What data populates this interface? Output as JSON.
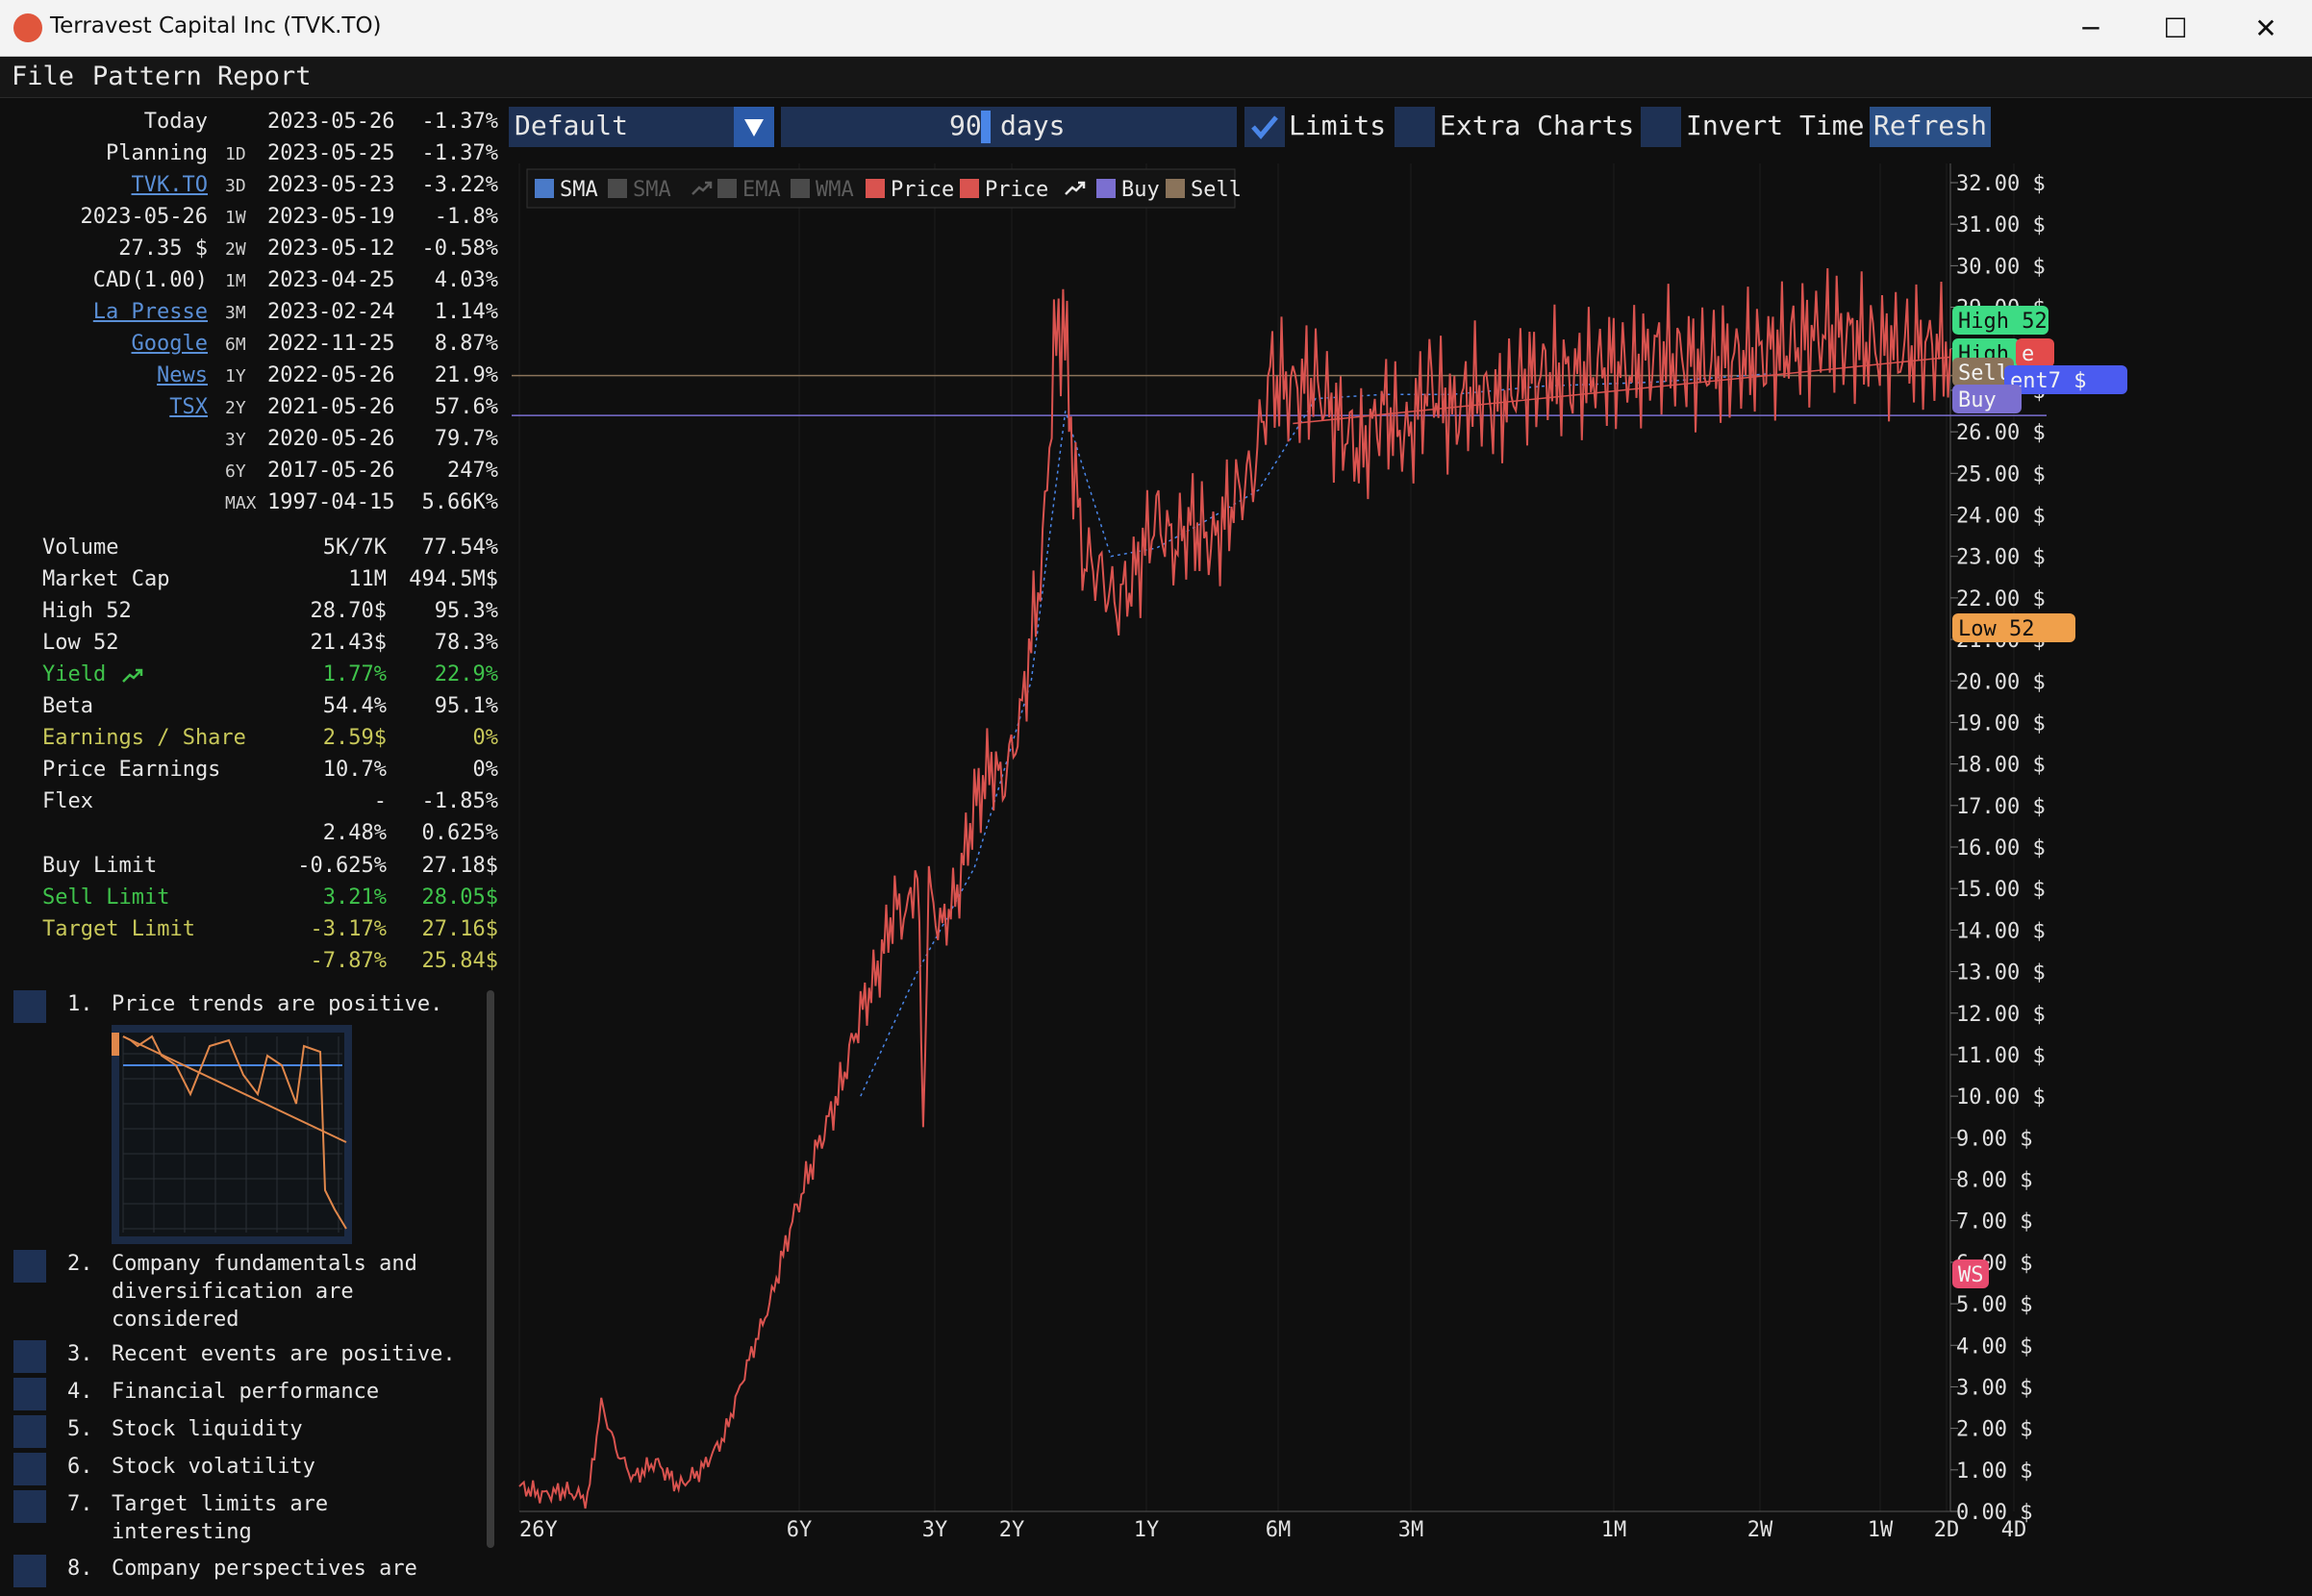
{
  "window": {
    "title": "Terravest Capital Inc (TVK.TO)",
    "minimize": "─",
    "maximize": "☐",
    "close": "✕"
  },
  "menu": [
    "File",
    "Pattern",
    "Report"
  ],
  "toolbar": {
    "preset": "Default",
    "days_value": "90",
    "days_unit": "days",
    "limits_label": "Limits",
    "limits_checked": true,
    "extra_charts_label": "Extra Charts",
    "invert_time_label": "Invert Time",
    "refresh_label": "Refresh"
  },
  "summary": {
    "left": [
      "Today",
      "Planning",
      "TVK.TO",
      "2023-05-26",
      "27.35 $",
      "CAD(1.00)",
      "La Presse",
      "Google",
      "News",
      "TSX"
    ],
    "periods": [
      {
        "code": "",
        "date": "2023-05-26",
        "change": "-1.37%"
      },
      {
        "code": "1D",
        "date": "2023-05-25",
        "change": "-1.37%"
      },
      {
        "code": "3D",
        "date": "2023-05-23",
        "change": "-3.22%"
      },
      {
        "code": "1W",
        "date": "2023-05-19",
        "change": "-1.8%"
      },
      {
        "code": "2W",
        "date": "2023-05-12",
        "change": "-0.58%"
      },
      {
        "code": "1M",
        "date": "2023-04-25",
        "change": "4.03%"
      },
      {
        "code": "3M",
        "date": "2023-02-24",
        "change": "1.14%"
      },
      {
        "code": "6M",
        "date": "2022-11-25",
        "change": "8.87%"
      },
      {
        "code": "1Y",
        "date": "2022-05-26",
        "change": "21.9%"
      },
      {
        "code": "2Y",
        "date": "2021-05-26",
        "change": "57.6%"
      },
      {
        "code": "3Y",
        "date": "2020-05-26",
        "change": "79.7%"
      },
      {
        "code": "6Y",
        "date": "2017-05-26",
        "change": "247%"
      },
      {
        "code": "MAX",
        "date": "1997-04-15",
        "change": "5.66K%"
      }
    ]
  },
  "stats": [
    {
      "label": "Volume",
      "v1": "5K/7K",
      "v2": "77.54%",
      "color": "white"
    },
    {
      "label": "Market Cap",
      "v1": "11M",
      "v2": "494.5M$",
      "color": "white"
    },
    {
      "label": "High 52",
      "v1": "28.70$",
      "v2": "95.3%",
      "color": "white"
    },
    {
      "label": "Low 52",
      "v1": "21.43$",
      "v2": "78.3%",
      "color": "white"
    },
    {
      "label": "Yield",
      "v1": "1.77%",
      "v2": "22.9%",
      "color": "green"
    },
    {
      "label": "Beta",
      "v1": "54.4%",
      "v2": "95.1%",
      "color": "white"
    },
    {
      "label": "Earnings / Share",
      "v1": "2.59$",
      "v2": "0%",
      "color": "yellow"
    },
    {
      "label": "Price Earnings",
      "v1": "10.7%",
      "v2": "0%",
      "color": "white"
    },
    {
      "label": "Flex",
      "v1": "-",
      "v2": "-1.85%",
      "color": "white"
    },
    {
      "label": "",
      "v1": "2.48%",
      "v2": "0.625%",
      "color": "white"
    }
  ],
  "limits": [
    {
      "label": "Buy Limit",
      "v1": "-0.625%",
      "v2": "27.18$",
      "color": "white"
    },
    {
      "label": "Sell Limit",
      "v1": "3.21%",
      "v2": "28.05$",
      "color": "green"
    },
    {
      "label": "Target Limit",
      "v1": "-3.17%",
      "v2": "27.16$",
      "color": "yellow"
    },
    {
      "label": "",
      "v1": "-7.87%",
      "v2": "25.84$",
      "color": "yellow"
    }
  ],
  "checklist": [
    {
      "num": "1.",
      "lines": [
        "Price trends are positive."
      ]
    },
    {
      "num": "2.",
      "lines": [
        "Company fundamentals and",
        "diversification are",
        "considered"
      ]
    },
    {
      "num": "3.",
      "lines": [
        "Recent events are positive."
      ]
    },
    {
      "num": "4.",
      "lines": [
        "Financial performance"
      ]
    },
    {
      "num": "5.",
      "lines": [
        "Stock liquidity"
      ]
    },
    {
      "num": "6.",
      "lines": [
        "Stock volatility"
      ]
    },
    {
      "num": "7.",
      "lines": [
        "Target limits are",
        "interesting"
      ]
    },
    {
      "num": "8.",
      "lines": [
        "Company perspectives are"
      ]
    }
  ],
  "chart_data": {
    "type": "line",
    "legend": [
      "SMA",
      "SMA",
      "EMA",
      "WMA",
      "Price",
      "Price",
      "Buy",
      "Sell"
    ],
    "y_ticks": [
      "32.00 $",
      "31.00 $",
      "30.00 $",
      "29.00 $",
      "28.00 $",
      "27.00 $",
      "26.00 $",
      "25.00 $",
      "24.00 $",
      "23.00 $",
      "22.00 $",
      "21.00 $",
      "20.00 $",
      "19.00 $",
      "18.00 $",
      "17.00 $",
      "16.00 $",
      "15.00 $",
      "14.00 $",
      "13.00 $",
      "12.00 $",
      "11.00 $",
      "10.00 $",
      "9.00 $",
      "8.00 $",
      "7.00 $",
      "6.00 $",
      "5.00 $",
      "4.00 $",
      "3.00 $",
      "2.00 $",
      "1.00 $",
      "0.00 $"
    ],
    "ylim": [
      0,
      32
    ],
    "x_ticks": [
      "26Y",
      "6Y",
      "3Y",
      "2Y",
      "1Y",
      "6M",
      "3M",
      "1M",
      "2W",
      "1W",
      "4D",
      "2D"
    ],
    "tags": [
      {
        "label": "High 52",
        "color": "#3ddc84"
      },
      {
        "label": "High",
        "color": "#3ddc84"
      },
      {
        "label": "e",
        "color": "#e34b4b"
      },
      {
        "label": "Sell",
        "color": "#8a735a"
      },
      {
        "label": "ent7 $",
        "color": "#4b5bf0"
      },
      {
        "label": "Buy",
        "color": "#7b6fd0"
      },
      {
        "label": "Low 52",
        "color": "#f0a04b"
      },
      {
        "label": "WS",
        "color": "#e84b6f"
      }
    ],
    "price_points": [
      [
        0,
        0.6
      ],
      [
        20,
        0.4
      ],
      [
        40,
        0.5
      ],
      [
        60,
        0.3
      ],
      [
        72,
        2.6
      ],
      [
        85,
        1.5
      ],
      [
        100,
        0.8
      ],
      [
        120,
        1.2
      ],
      [
        140,
        0.6
      ],
      [
        160,
        1.0
      ],
      [
        180,
        1.8
      ],
      [
        200,
        3.5
      ],
      [
        220,
        5.0
      ],
      [
        240,
        7.0
      ],
      [
        260,
        8.6
      ],
      [
        280,
        10.0
      ],
      [
        300,
        12.0
      ],
      [
        315,
        13.0
      ],
      [
        330,
        14.6
      ],
      [
        340,
        14.3
      ],
      [
        350,
        15.5
      ],
      [
        355,
        9.3
      ],
      [
        360,
        15.0
      ],
      [
        370,
        14.0
      ],
      [
        385,
        14.9
      ],
      [
        400,
        17.0
      ],
      [
        415,
        18.0
      ],
      [
        425,
        17.5
      ],
      [
        440,
        19.0
      ],
      [
        450,
        21.0
      ],
      [
        460,
        23.0
      ],
      [
        470,
        27.8
      ],
      [
        478,
        28.9
      ],
      [
        485,
        26.0
      ],
      [
        495,
        23.0
      ],
      [
        510,
        22.6
      ],
      [
        525,
        21.8
      ],
      [
        540,
        22.5
      ],
      [
        560,
        24.0
      ],
      [
        575,
        23.2
      ],
      [
        590,
        23.8
      ],
      [
        610,
        23.3
      ],
      [
        630,
        24.5
      ],
      [
        645,
        25.0
      ],
      [
        660,
        27.3
      ],
      [
        680,
        27.0
      ],
      [
        700,
        27.2
      ],
      [
        720,
        26.2
      ],
      [
        740,
        25.5
      ],
      [
        760,
        26.6
      ],
      [
        780,
        25.8
      ],
      [
        800,
        27.2
      ],
      [
        820,
        26.4
      ],
      [
        840,
        27.0
      ],
      [
        860,
        26.6
      ],
      [
        880,
        27.2
      ],
      [
        900,
        27.4
      ],
      [
        930,
        27.3
      ],
      [
        960,
        27.6
      ],
      [
        980,
        27.5
      ],
      [
        1000,
        27.9
      ],
      [
        1040,
        27.6
      ],
      [
        1100,
        27.9
      ],
      [
        1150,
        28.4
      ],
      [
        1200,
        28.0
      ],
      [
        1258,
        28.0
      ]
    ],
    "sma_points": [
      [
        300,
        10.0
      ],
      [
        350,
        13.0
      ],
      [
        400,
        15.5
      ],
      [
        450,
        20.0
      ],
      [
        480,
        26.5
      ],
      [
        520,
        23.0
      ],
      [
        560,
        23.2
      ],
      [
        600,
        23.8
      ],
      [
        650,
        24.6
      ],
      [
        700,
        26.8
      ],
      [
        760,
        26.9
      ],
      [
        820,
        26.9
      ],
      [
        900,
        27.1
      ],
      [
        1000,
        27.2
      ],
      [
        1100,
        27.4
      ]
    ],
    "trend_line": [
      [
        680,
        26.2
      ],
      [
        1258,
        27.8
      ]
    ],
    "sell_limit": 28.05,
    "buy_limit": 27.18
  },
  "mini_chart": {
    "price_points": [
      [
        0,
        0.0
      ],
      [
        8,
        0.02
      ],
      [
        15,
        0.05
      ],
      [
        30,
        0.0
      ],
      [
        40,
        0.1
      ],
      [
        55,
        0.15
      ],
      [
        70,
        0.3
      ],
      [
        90,
        0.05
      ],
      [
        110,
        0.02
      ],
      [
        125,
        0.2
      ],
      [
        140,
        0.3
      ],
      [
        150,
        0.1
      ],
      [
        165,
        0.15
      ],
      [
        180,
        0.35
      ],
      [
        188,
        0.05
      ],
      [
        205,
        0.08
      ],
      [
        210,
        0.8
      ],
      [
        220,
        0.9
      ],
      [
        232,
        1.0
      ]
    ],
    "trend_line": [
      [
        0,
        0.0
      ],
      [
        232,
        0.55
      ]
    ],
    "hline": 0.15
  }
}
